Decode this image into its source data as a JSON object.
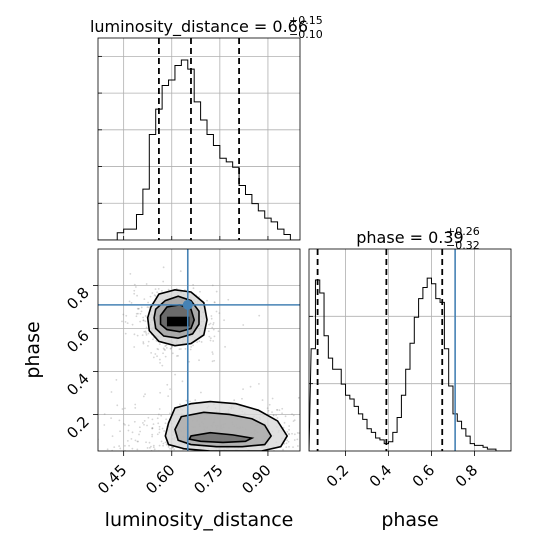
{
  "colors": {
    "truth": "#4682b4",
    "hist": "#000000",
    "grid": "#b0b0b0",
    "quantile": "#000000",
    "scatter": "#888888"
  },
  "titles": {
    "luminosity_distance": {
      "text": "luminosity_distance = 0.66",
      "sup": "+0.15",
      "sub": "−0.10"
    },
    "phase": {
      "text": "phase = 0.39",
      "sup": "+0.26",
      "sub": "−0.32"
    }
  },
  "chart_data": [
    {
      "type": "histogram",
      "parameter": "luminosity_distance",
      "x": [
        0.38,
        0.4,
        0.42,
        0.44,
        0.46,
        0.48,
        0.5,
        0.52,
        0.54,
        0.56,
        0.58,
        0.6,
        0.62,
        0.64,
        0.66,
        0.68,
        0.7,
        0.72,
        0.74,
        0.76,
        0.78,
        0.8,
        0.82,
        0.84,
        0.86,
        0.88,
        0.9,
        0.92,
        0.94,
        0.96,
        0.98
      ],
      "values": [
        0,
        0,
        0,
        0.04,
        0.06,
        0.06,
        0.14,
        0.28,
        0.58,
        0.72,
        0.85,
        0.88,
        0.96,
        0.99,
        0.94,
        0.76,
        0.66,
        0.58,
        0.52,
        0.45,
        0.43,
        0.4,
        0.3,
        0.25,
        0.2,
        0.16,
        0.12,
        0.1,
        0.06,
        0.03,
        0.0
      ],
      "quantiles": [
        0.56,
        0.66,
        0.81
      ],
      "truth": 0.65,
      "xlim": [
        0.37,
        1.0
      ]
    },
    {
      "type": "histogram",
      "parameter": "phase",
      "x": [
        0.05,
        0.07,
        0.09,
        0.11,
        0.13,
        0.15,
        0.17,
        0.19,
        0.21,
        0.23,
        0.25,
        0.27,
        0.29,
        0.31,
        0.33,
        0.35,
        0.37,
        0.39,
        0.41,
        0.43,
        0.45,
        0.47,
        0.49,
        0.51,
        0.53,
        0.55,
        0.57,
        0.59,
        0.61,
        0.63,
        0.65,
        0.67,
        0.69,
        0.71,
        0.73,
        0.75,
        0.77,
        0.79,
        0.81,
        0.83,
        0.85,
        0.87,
        0.89,
        0.91,
        0.93
      ],
      "values": [
        0.55,
        0.92,
        0.85,
        0.62,
        0.5,
        0.44,
        0.44,
        0.36,
        0.3,
        0.28,
        0.24,
        0.2,
        0.17,
        0.12,
        0.1,
        0.07,
        0.06,
        0.04,
        0.05,
        0.1,
        0.18,
        0.3,
        0.44,
        0.58,
        0.72,
        0.82,
        0.88,
        0.93,
        0.9,
        0.82,
        0.8,
        0.55,
        0.35,
        0.2,
        0.16,
        0.12,
        0.08,
        0.04,
        0.03,
        0.03,
        0.02,
        0.01,
        0.01,
        0.0,
        0.0
      ],
      "quantiles": [
        0.07,
        0.39,
        0.65
      ],
      "truth": 0.71,
      "xlim": [
        0.03,
        0.97
      ]
    },
    {
      "type": "contour",
      "x_parameter": "luminosity_distance",
      "y_parameter": "phase",
      "xlabel": "luminosity_distance",
      "ylabel": "phase",
      "x_ticks": [
        0.45,
        0.6,
        0.75,
        0.9
      ],
      "y_ticks": [
        0.2,
        0.4,
        0.6,
        0.8
      ],
      "x_tick_labels": [
        "0.45",
        "0.60",
        "0.75",
        "0.90"
      ],
      "y_tick_labels": [
        "0.2",
        "0.4",
        "0.6",
        "0.8"
      ],
      "xlim": [
        0.37,
        1.0
      ],
      "ylim": [
        0.03,
        0.97
      ],
      "truth": {
        "x": 0.65,
        "y": 0.71
      },
      "modes": [
        {
          "x": 0.61,
          "y": 0.63,
          "sx": 0.045,
          "sy": 0.055
        },
        {
          "x": 0.74,
          "y": 0.1,
          "sx": 0.11,
          "sy": 0.06
        }
      ],
      "contours": [
        [
          [
            0.535,
            0.7
          ],
          [
            0.56,
            0.76
          ],
          [
            0.61,
            0.78
          ],
          [
            0.66,
            0.77
          ],
          [
            0.7,
            0.72
          ],
          [
            0.71,
            0.64
          ],
          [
            0.7,
            0.57
          ],
          [
            0.66,
            0.53
          ],
          [
            0.61,
            0.52
          ],
          [
            0.56,
            0.54
          ],
          [
            0.53,
            0.59
          ],
          [
            0.525,
            0.65
          ]
        ],
        [
          [
            0.55,
            0.69
          ],
          [
            0.58,
            0.73
          ],
          [
            0.62,
            0.75
          ],
          [
            0.66,
            0.73
          ],
          [
            0.685,
            0.68
          ],
          [
            0.685,
            0.62
          ],
          [
            0.665,
            0.575
          ],
          [
            0.62,
            0.555
          ],
          [
            0.575,
            0.565
          ],
          [
            0.55,
            0.6
          ],
          [
            0.545,
            0.65
          ]
        ],
        [
          [
            0.565,
            0.66
          ],
          [
            0.585,
            0.7
          ],
          [
            0.625,
            0.71
          ],
          [
            0.66,
            0.69
          ],
          [
            0.67,
            0.64
          ],
          [
            0.66,
            0.6
          ],
          [
            0.625,
            0.585
          ],
          [
            0.585,
            0.595
          ],
          [
            0.565,
            0.62
          ]
        ],
        [
          [
            0.61,
            0.23
          ],
          [
            0.66,
            0.25
          ],
          [
            0.72,
            0.26
          ],
          [
            0.8,
            0.25
          ],
          [
            0.87,
            0.22
          ],
          [
            0.93,
            0.17
          ],
          [
            0.96,
            0.1
          ],
          [
            0.94,
            0.05
          ],
          [
            0.88,
            0.03
          ],
          [
            0.8,
            0.03
          ],
          [
            0.72,
            0.03
          ],
          [
            0.64,
            0.04
          ],
          [
            0.59,
            0.06
          ],
          [
            0.58,
            0.1
          ],
          [
            0.59,
            0.16
          ]
        ],
        [
          [
            0.63,
            0.19
          ],
          [
            0.7,
            0.21
          ],
          [
            0.78,
            0.2
          ],
          [
            0.85,
            0.18
          ],
          [
            0.89,
            0.15
          ],
          [
            0.91,
            0.1
          ],
          [
            0.89,
            0.06
          ],
          [
            0.82,
            0.05
          ],
          [
            0.74,
            0.05
          ],
          [
            0.66,
            0.06
          ],
          [
            0.62,
            0.08
          ],
          [
            0.61,
            0.13
          ]
        ],
        [
          [
            0.66,
            0.1
          ],
          [
            0.72,
            0.115
          ],
          [
            0.79,
            0.105
          ],
          [
            0.85,
            0.09
          ],
          [
            0.83,
            0.075
          ],
          [
            0.76,
            0.07
          ],
          [
            0.69,
            0.075
          ],
          [
            0.655,
            0.085
          ]
        ]
      ]
    }
  ],
  "axes_labels": {
    "bottom_left": "luminosity_distance",
    "bottom_right": "phase",
    "left": "phase"
  }
}
